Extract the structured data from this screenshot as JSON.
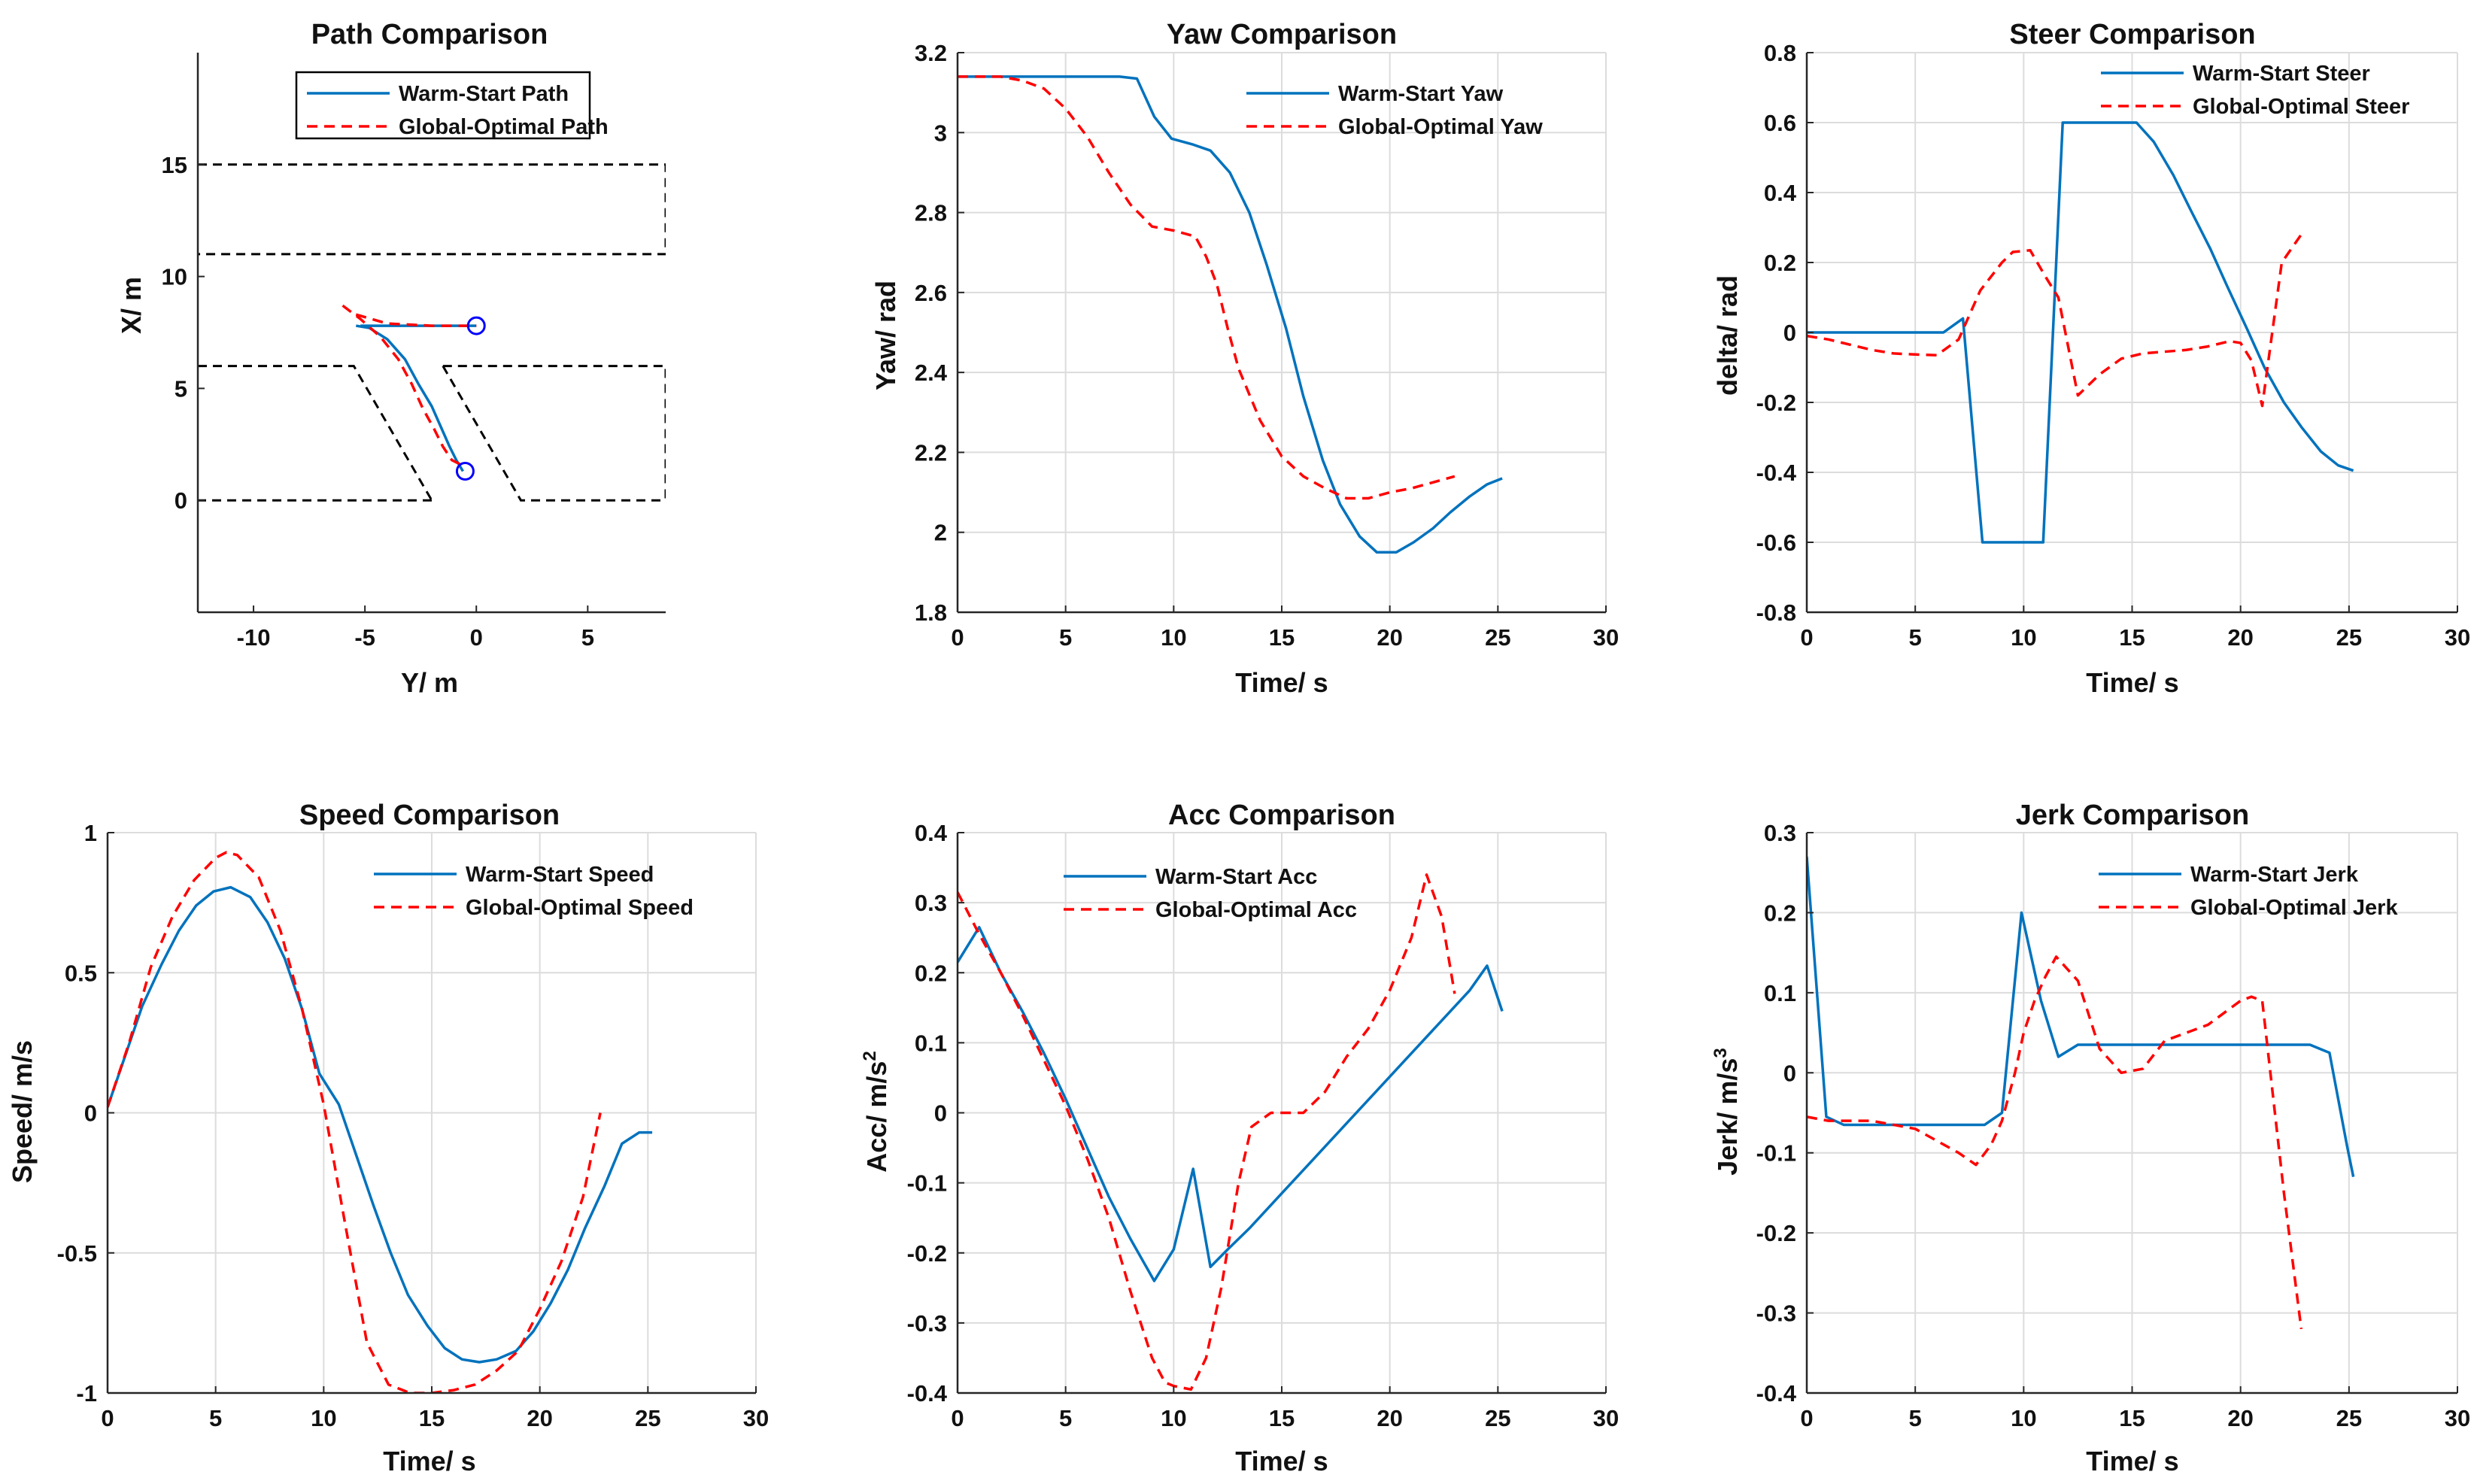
{
  "figure": {
    "colors": {
      "warm_start": "#0072BD",
      "global_optimal": "#FF0000",
      "boundary": "#000000",
      "marker": "#0000FF",
      "grid": "#DCDCDC"
    }
  },
  "chart_data": [
    {
      "id": "path",
      "type": "line",
      "title": "Path Comparison",
      "xlabel": "Y/ m",
      "ylabel": "X/ m",
      "xlim": [
        -12.5,
        8.5
      ],
      "ylim": [
        -5,
        20
      ],
      "xticks": [
        -10,
        -5,
        0,
        5
      ],
      "yticks": [
        0,
        5,
        10,
        15
      ],
      "grid": false,
      "legend_box": true,
      "legend_position": "top-right",
      "series": [
        {
          "name": "Warm-Start Path",
          "style": "solid",
          "color": "#0072BD",
          "x": [
            -5.4,
            -4.8,
            -4.0,
            -3.2,
            -2.6,
            -2.0,
            -1.6,
            -1.2,
            -0.9,
            -0.6
          ],
          "y": [
            7.8,
            7.7,
            7.2,
            6.3,
            5.2,
            4.2,
            3.3,
            2.4,
            1.8,
            1.3
          ]
        },
        {
          "name": "Global-Optimal Path",
          "style": "dashed",
          "color": "#FF0000",
          "x": [
            -6.0,
            -5.2,
            -4.3,
            -3.5,
            -2.9,
            -2.4,
            -1.9,
            -1.5,
            -1.1,
            -0.7
          ],
          "y": [
            8.7,
            8.1,
            7.3,
            6.3,
            5.2,
            4.1,
            3.2,
            2.4,
            1.8,
            1.6
          ]
        },
        {
          "name": "",
          "style": "solid",
          "color": "#0072BD",
          "x": [
            -5.2,
            -4.0,
            -2.0,
            0.0
          ],
          "y": [
            7.8,
            7.8,
            7.8,
            7.8
          ]
        },
        {
          "name": "",
          "style": "dashed",
          "color": "#FF0000",
          "x": [
            -5.4,
            -4.0,
            -2.0,
            0.0
          ],
          "y": [
            8.3,
            7.9,
            7.8,
            7.8
          ]
        }
      ],
      "boundaries": [
        {
          "x": [
            -12.5,
            8.5,
            8.5,
            -12.5
          ],
          "y": [
            15,
            15,
            11,
            11
          ]
        },
        {
          "x": [
            -12.5,
            -5.5,
            -2.0
          ],
          "y": [
            6,
            6,
            0
          ]
        },
        {
          "x": [
            -2.0,
            -12.5
          ],
          "y": [
            0,
            0
          ]
        },
        {
          "x": [
            -1.5,
            2.0,
            8.5
          ],
          "y": [
            6,
            0,
            0
          ]
        },
        {
          "x": [
            -1.5,
            8.5,
            8.5
          ],
          "y": [
            6,
            6,
            0
          ]
        }
      ],
      "markers": [
        {
          "x": 0.0,
          "y": 7.8
        },
        {
          "x": -0.5,
          "y": 1.3
        }
      ]
    },
    {
      "id": "yaw",
      "type": "line",
      "title": "Yaw Comparison",
      "xlabel": "Time/ s",
      "ylabel": "Yaw/ rad",
      "xlim": [
        0,
        30
      ],
      "ylim": [
        1.8,
        3.2
      ],
      "xticks": [
        0,
        5,
        10,
        15,
        20,
        25,
        30
      ],
      "yticks": [
        1.8,
        2,
        2.2,
        2.4,
        2.6,
        2.8,
        3,
        3.2
      ],
      "grid": true,
      "legend_box": false,
      "legend_position": "top-right",
      "series": [
        {
          "name": "Warm-Start Yaw",
          "style": "solid",
          "color": "#0072BD",
          "x": [
            0,
            2,
            4,
            6,
            7.5,
            8.3,
            9.1,
            9.9,
            10.9,
            11.7,
            12.6,
            13.5,
            14.3,
            15.2,
            16.0,
            16.9,
            17.7,
            18.6,
            19.4,
            20.3,
            21.1,
            22.0,
            22.8,
            23.7,
            24.5,
            25.2
          ],
          "y": [
            3.14,
            3.14,
            3.14,
            3.14,
            3.14,
            3.135,
            3.04,
            2.985,
            2.97,
            2.955,
            2.9,
            2.8,
            2.67,
            2.51,
            2.34,
            2.18,
            2.07,
            1.99,
            1.95,
            1.95,
            1.975,
            2.01,
            2.05,
            2.09,
            2.12,
            2.135
          ]
        },
        {
          "name": "Global-Optimal Yaw",
          "style": "dashed",
          "color": "#FF0000",
          "x": [
            0,
            1,
            2,
            3,
            4,
            5,
            6,
            7,
            8,
            9,
            10,
            11,
            11.5,
            12,
            12.5,
            13,
            14,
            15,
            16,
            17,
            18,
            19,
            20,
            21,
            22,
            23
          ],
          "y": [
            3.14,
            3.14,
            3.14,
            3.13,
            3.11,
            3.06,
            2.99,
            2.9,
            2.82,
            2.765,
            2.755,
            2.74,
            2.69,
            2.62,
            2.51,
            2.41,
            2.28,
            2.19,
            2.14,
            2.11,
            2.085,
            2.085,
            2.1,
            2.11,
            2.125,
            2.14
          ]
        }
      ]
    },
    {
      "id": "steer",
      "type": "line",
      "title": "Steer Comparison",
      "xlabel": "Time/ s",
      "ylabel": "delta/ rad",
      "xlim": [
        0,
        30
      ],
      "ylim": [
        -0.8,
        0.8
      ],
      "xticks": [
        0,
        5,
        10,
        15,
        20,
        25,
        30
      ],
      "yticks": [
        -0.8,
        -0.6,
        -0.4,
        -0.2,
        0,
        0.2,
        0.4,
        0.6,
        0.8
      ],
      "grid": true,
      "legend_box": false,
      "legend_position": "top-right",
      "series": [
        {
          "name": "Warm-Start Steer",
          "style": "solid",
          "color": "#0072BD",
          "x": [
            0,
            6.3,
            7.2,
            8.1,
            10.9,
            11.8,
            15.2,
            16.0,
            16.9,
            17.7,
            18.6,
            19.4,
            20.3,
            21.1,
            22.0,
            22.8,
            23.7,
            24.5,
            25.2
          ],
          "y": [
            0,
            0,
            0.04,
            -0.6,
            -0.6,
            0.6,
            0.6,
            0.545,
            0.45,
            0.35,
            0.24,
            0.13,
            0.01,
            -0.1,
            -0.2,
            -0.27,
            -0.34,
            -0.38,
            -0.395
          ]
        },
        {
          "name": "Global-Optimal Steer",
          "style": "dashed",
          "color": "#FF0000",
          "x": [
            0,
            1,
            2,
            3,
            4,
            5,
            6,
            7,
            8,
            9,
            9.5,
            10.3,
            11,
            11.6,
            12.5,
            13.5,
            14.5,
            15.5,
            16.5,
            17.5,
            18.5,
            19.5,
            20,
            20.5,
            21,
            21.9,
            22.8
          ],
          "y": [
            -0.01,
            -0.02,
            -0.035,
            -0.05,
            -0.06,
            -0.063,
            -0.065,
            -0.02,
            0.12,
            0.2,
            0.23,
            0.235,
            0.16,
            0.1,
            -0.18,
            -0.12,
            -0.075,
            -0.06,
            -0.055,
            -0.05,
            -0.04,
            -0.025,
            -0.03,
            -0.08,
            -0.21,
            0.2,
            0.28
          ]
        }
      ]
    },
    {
      "id": "speed",
      "type": "line",
      "title": "Speed Comparison",
      "xlabel": "Time/ s",
      "ylabel": "Speed/ m/s",
      "xlim": [
        0,
        30
      ],
      "ylim": [
        -1,
        1
      ],
      "xticks": [
        0,
        5,
        10,
        15,
        20,
        25,
        30
      ],
      "yticks": [
        -1,
        -0.5,
        0,
        0.5,
        1
      ],
      "grid": true,
      "legend_box": false,
      "legend_position": "top-right",
      "series": [
        {
          "name": "Warm-Start Speed",
          "style": "solid",
          "color": "#0072BD",
          "x": [
            0,
            0.8,
            1.6,
            2.5,
            3.3,
            4.1,
            4.9,
            5.7,
            6.6,
            7.4,
            8.2,
            9.0,
            9.8,
            10.7,
            11.5,
            12.3,
            13.1,
            13.9,
            14.8,
            15.6,
            16.4,
            17.2,
            18.0,
            18.9,
            19.7,
            20.5,
            21.3,
            22.1,
            23.0,
            23.8,
            24.6,
            25.2
          ],
          "y": [
            0.02,
            0.2,
            0.38,
            0.53,
            0.65,
            0.74,
            0.79,
            0.805,
            0.77,
            0.68,
            0.55,
            0.37,
            0.14,
            0.03,
            -0.15,
            -0.33,
            -0.5,
            -0.65,
            -0.76,
            -0.84,
            -0.88,
            -0.89,
            -0.88,
            -0.85,
            -0.78,
            -0.68,
            -0.56,
            -0.41,
            -0.26,
            -0.11,
            -0.07,
            -0.07
          ]
        },
        {
          "name": "Global-Optimal Speed",
          "style": "dashed",
          "color": "#FF0000",
          "x": [
            0,
            1,
            2,
            3,
            4,
            5,
            5.5,
            6,
            7,
            8,
            9,
            10,
            11,
            12,
            13,
            14,
            15,
            16,
            17,
            18,
            19,
            20,
            21,
            22,
            22.8
          ],
          "y": [
            0.02,
            0.25,
            0.52,
            0.7,
            0.83,
            0.91,
            0.93,
            0.92,
            0.84,
            0.65,
            0.37,
            0.03,
            -0.4,
            -0.82,
            -0.97,
            -1.0,
            -1.0,
            -0.99,
            -0.97,
            -0.92,
            -0.85,
            -0.7,
            -0.53,
            -0.3,
            0.0
          ]
        }
      ]
    },
    {
      "id": "acc",
      "type": "line",
      "title": "Acc Comparison",
      "xlabel": "Time/ s",
      "ylabel": "Acc/ m/s",
      "ylabel_superscript": "2",
      "xlim": [
        0,
        30
      ],
      "ylim": [
        -0.4,
        0.4
      ],
      "xticks": [
        0,
        5,
        10,
        15,
        20,
        25,
        30
      ],
      "yticks": [
        -0.4,
        -0.3,
        -0.2,
        -0.1,
        0,
        0.1,
        0.2,
        0.3,
        0.4
      ],
      "grid": true,
      "legend_box": false,
      "legend_position": "top-right",
      "series": [
        {
          "name": "Warm-Start Acc",
          "style": "solid",
          "color": "#0072BD",
          "x": [
            0,
            1,
            2,
            3,
            4,
            5,
            6,
            7,
            8,
            9.1,
            10.0,
            10.9,
            11.7,
            12.5,
            13.5,
            15,
            16.5,
            18,
            19.5,
            21,
            22.5,
            23.7,
            24.5,
            25.2
          ],
          "y": [
            0.215,
            0.265,
            0.2,
            0.145,
            0.085,
            0.02,
            -0.05,
            -0.12,
            -0.18,
            -0.24,
            -0.195,
            -0.08,
            -0.22,
            -0.195,
            -0.165,
            -0.115,
            -0.065,
            -0.015,
            0.035,
            0.085,
            0.135,
            0.175,
            0.21,
            0.145
          ]
        },
        {
          "name": "Global-Optimal Acc",
          "style": "dashed",
          "color": "#FF0000",
          "x": [
            0,
            1,
            2,
            3,
            4,
            5,
            6,
            7,
            8,
            9,
            9.6,
            10,
            10.8,
            11.5,
            12.2,
            13,
            13.6,
            14.5,
            16,
            17,
            18,
            19,
            20,
            21,
            21.7,
            22.4,
            23
          ],
          "y": [
            0.315,
            0.255,
            0.2,
            0.14,
            0.075,
            0.01,
            -0.065,
            -0.15,
            -0.255,
            -0.35,
            -0.385,
            -0.39,
            -0.395,
            -0.35,
            -0.25,
            -0.1,
            -0.02,
            0.0,
            0.0,
            0.03,
            0.08,
            0.12,
            0.175,
            0.25,
            0.34,
            0.28,
            0.17
          ]
        }
      ]
    },
    {
      "id": "jerk",
      "type": "line",
      "title": "Jerk Comparison",
      "xlabel": "Time/ s",
      "ylabel": "Jerk/ m/s",
      "ylabel_superscript": "3",
      "xlim": [
        0,
        30
      ],
      "ylim": [
        -0.4,
        0.3
      ],
      "xticks": [
        0,
        5,
        10,
        15,
        20,
        25,
        30
      ],
      "yticks": [
        -0.4,
        -0.3,
        -0.2,
        -0.1,
        0,
        0.1,
        0.2,
        0.3
      ],
      "grid": true,
      "legend_box": false,
      "legend_position": "top-right",
      "series": [
        {
          "name": "Warm-Start Jerk",
          "style": "solid",
          "color": "#0072BD",
          "x": [
            0,
            0.9,
            1.7,
            8.2,
            9.0,
            9.9,
            10.8,
            11.6,
            12.5,
            23.2,
            24.1,
            24.9,
            25.2
          ],
          "y": [
            0.27,
            -0.055,
            -0.065,
            -0.065,
            -0.05,
            0.2,
            0.09,
            0.02,
            0.035,
            0.035,
            0.025,
            -0.09,
            -0.13
          ]
        },
        {
          "name": "Global-Optimal Jerk",
          "style": "dashed",
          "color": "#FF0000",
          "x": [
            0,
            1,
            2,
            3,
            4,
            5,
            6,
            7,
            7.8,
            8.5,
            9,
            9.6,
            10,
            10.5,
            11,
            11.5,
            12,
            12.5,
            13.5,
            14.5,
            15.5,
            16.5,
            17.5,
            18.5,
            19.5,
            20,
            20.5,
            21,
            22,
            22.8
          ],
          "y": [
            -0.055,
            -0.06,
            -0.06,
            -0.06,
            -0.065,
            -0.07,
            -0.085,
            -0.1,
            -0.115,
            -0.09,
            -0.06,
            0.0,
            0.05,
            0.09,
            0.12,
            0.145,
            0.13,
            0.115,
            0.03,
            0.0,
            0.005,
            0.04,
            0.05,
            0.06,
            0.08,
            0.09,
            0.095,
            0.09,
            -0.15,
            -0.32
          ]
        }
      ]
    }
  ]
}
